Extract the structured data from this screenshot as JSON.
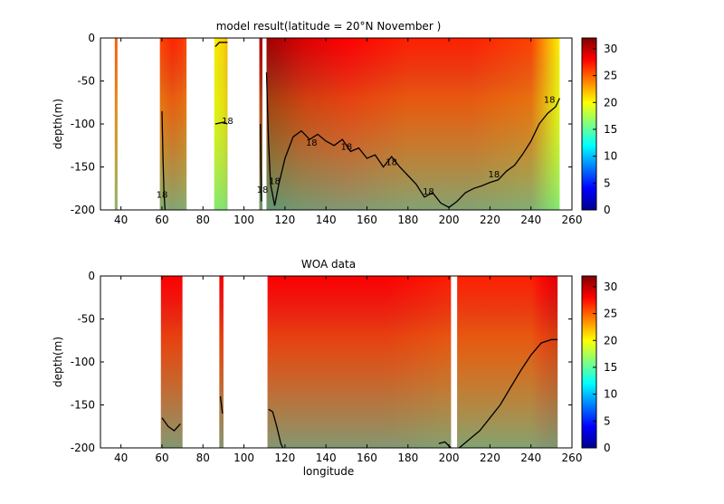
{
  "colormap": [
    "#00008f",
    "#0000ff",
    "#0080ff",
    "#00ffff",
    "#80ff80",
    "#ffff00",
    "#ff8000",
    "#ff0000",
    "#800000"
  ],
  "chart_data": [
    {
      "type": "heatmap",
      "title": "model result(latitude = 20°N  November )",
      "xlabel": "",
      "ylabel": "depth(m)",
      "xlim": [
        30,
        260
      ],
      "ylim": [
        -200,
        0
      ],
      "xticks": [
        "40",
        "60",
        "80",
        "100",
        "120",
        "140",
        "160",
        "180",
        "200",
        "220",
        "240",
        "260"
      ],
      "yticks": [
        "0",
        "-50",
        "-100",
        "-150",
        "-200"
      ],
      "colorbar": {
        "range": [
          0,
          32
        ],
        "ticks": [
          "30",
          "25",
          "20",
          "15",
          "10",
          "5",
          "0"
        ]
      },
      "surface_temperature": [
        {
          "x": 37.5,
          "t": 25
        },
        {
          "x": 60,
          "t": 26
        },
        {
          "x": 66,
          "t": 27
        },
        {
          "x": 72,
          "t": 26
        },
        {
          "x": 86,
          "t": 20
        },
        {
          "x": 92,
          "t": 22
        },
        {
          "x": 108,
          "t": 31
        },
        {
          "x": 111,
          "t": 31
        },
        {
          "x": 130,
          "t": 29
        },
        {
          "x": 150,
          "t": 28
        },
        {
          "x": 180,
          "t": 27
        },
        {
          "x": 210,
          "t": 27
        },
        {
          "x": 240,
          "t": 26
        },
        {
          "x": 250,
          "t": 22
        },
        {
          "x": 254,
          "t": 20
        }
      ],
      "segments": [
        {
          "x0": 37,
          "x1": 38.3
        },
        {
          "x0": 59,
          "x1": 72
        },
        {
          "x0": 85.5,
          "x1": 92
        },
        {
          "x0": 107.5,
          "x1": 109
        },
        {
          "x0": 111,
          "x1": 254
        }
      ],
      "isotherm_18C": [
        {
          "x": 111,
          "depth": -40
        },
        {
          "x": 112,
          "depth": -120
        },
        {
          "x": 113,
          "depth": -170
        },
        {
          "x": 115,
          "depth": -195
        },
        {
          "x": 117,
          "depth": -170
        },
        {
          "x": 120,
          "depth": -140
        },
        {
          "x": 124,
          "depth": -115
        },
        {
          "x": 128,
          "depth": -108
        },
        {
          "x": 132,
          "depth": -118
        },
        {
          "x": 136,
          "depth": -112
        },
        {
          "x": 140,
          "depth": -120
        },
        {
          "x": 144,
          "depth": -125
        },
        {
          "x": 148,
          "depth": -118
        },
        {
          "x": 152,
          "depth": -132
        },
        {
          "x": 156,
          "depth": -128
        },
        {
          "x": 160,
          "depth": -140
        },
        {
          "x": 164,
          "depth": -136
        },
        {
          "x": 168,
          "depth": -150
        },
        {
          "x": 172,
          "depth": -138
        },
        {
          "x": 176,
          "depth": -150
        },
        {
          "x": 180,
          "depth": -160
        },
        {
          "x": 184,
          "depth": -170
        },
        {
          "x": 188,
          "depth": -185
        },
        {
          "x": 192,
          "depth": -180
        },
        {
          "x": 196,
          "depth": -192
        },
        {
          "x": 200,
          "depth": -197
        },
        {
          "x": 204,
          "depth": -190
        },
        {
          "x": 208,
          "depth": -180
        },
        {
          "x": 212,
          "depth": -175
        },
        {
          "x": 216,
          "depth": -172
        },
        {
          "x": 220,
          "depth": -168
        },
        {
          "x": 224,
          "depth": -165
        },
        {
          "x": 228,
          "depth": -155
        },
        {
          "x": 232,
          "depth": -148
        },
        {
          "x": 236,
          "depth": -135
        },
        {
          "x": 240,
          "depth": -120
        },
        {
          "x": 244,
          "depth": -100
        },
        {
          "x": 248,
          "depth": -88
        },
        {
          "x": 252,
          "depth": -80
        },
        {
          "x": 254,
          "depth": -70
        }
      ],
      "isotherm_fragments": [
        [
          {
            "x": 60,
            "depth": -85
          },
          {
            "x": 60.5,
            "depth": -140
          },
          {
            "x": 61,
            "depth": -180
          },
          {
            "x": 61.5,
            "depth": -200
          }
        ],
        [
          {
            "x": 86,
            "depth": -100
          },
          {
            "x": 90,
            "depth": -98
          },
          {
            "x": 92,
            "depth": -100
          }
        ],
        [
          {
            "x": 86,
            "depth": -10
          },
          {
            "x": 88,
            "depth": -5
          },
          {
            "x": 92,
            "depth": -5
          }
        ],
        [
          {
            "x": 108,
            "depth": -100
          },
          {
            "x": 108.5,
            "depth": -190
          }
        ]
      ],
      "contour_labels": [
        {
          "x": 92,
          "depth": -100,
          "text": "18"
        },
        {
          "x": 60,
          "depth": -186,
          "text": "18"
        },
        {
          "x": 109,
          "depth": -180,
          "text": "18"
        },
        {
          "x": 115,
          "depth": -170,
          "text": "18"
        },
        {
          "x": 133,
          "depth": -125,
          "text": "18"
        },
        {
          "x": 150,
          "depth": -130,
          "text": "18"
        },
        {
          "x": 172,
          "depth": -148,
          "text": "18"
        },
        {
          "x": 190,
          "depth": -182,
          "text": "18"
        },
        {
          "x": 222,
          "depth": -162,
          "text": "18"
        },
        {
          "x": 249,
          "depth": -75,
          "text": "18"
        }
      ]
    },
    {
      "type": "heatmap",
      "title": "WOA data",
      "xlabel": "longitude",
      "ylabel": "depth(m)",
      "xlim": [
        30,
        260
      ],
      "ylim": [
        -200,
        0
      ],
      "xticks": [
        "40",
        "60",
        "80",
        "100",
        "120",
        "140",
        "160",
        "180",
        "200",
        "220",
        "240",
        "260"
      ],
      "yticks": [
        "0",
        "-50",
        "-100",
        "-150",
        "-200"
      ],
      "colorbar": {
        "range": [
          0,
          32
        ],
        "ticks": [
          "30",
          "25",
          "20",
          "15",
          "10",
          "5",
          "0"
        ]
      },
      "surface_temperature": [
        {
          "x": 60,
          "t": 28
        },
        {
          "x": 70,
          "t": 28
        },
        {
          "x": 88,
          "t": 29
        },
        {
          "x": 90,
          "t": 28
        },
        {
          "x": 112,
          "t": 28
        },
        {
          "x": 140,
          "t": 28
        },
        {
          "x": 170,
          "t": 28
        },
        {
          "x": 205,
          "t": 27
        },
        {
          "x": 240,
          "t": 27
        },
        {
          "x": 253,
          "t": 29
        }
      ],
      "segments": [
        {
          "x0": 59.5,
          "x1": 70
        },
        {
          "x0": 88,
          "x1": 90
        },
        {
          "x0": 111.5,
          "x1": 201
        },
        {
          "x0": 204,
          "x1": 253
        }
      ],
      "isotherm_20C": [
        {
          "x": 205,
          "depth": -200
        },
        {
          "x": 210,
          "depth": -190
        },
        {
          "x": 215,
          "depth": -180
        },
        {
          "x": 220,
          "depth": -165
        },
        {
          "x": 225,
          "depth": -150
        },
        {
          "x": 230,
          "depth": -130
        },
        {
          "x": 235,
          "depth": -110
        },
        {
          "x": 240,
          "depth": -92
        },
        {
          "x": 245,
          "depth": -78
        },
        {
          "x": 250,
          "depth": -74
        },
        {
          "x": 253,
          "depth": -74
        }
      ],
      "isotherm_fragments": [
        [
          {
            "x": 60,
            "depth": -165
          },
          {
            "x": 63,
            "depth": -175
          },
          {
            "x": 66,
            "depth": -180
          },
          {
            "x": 69,
            "depth": -172
          }
        ],
        [
          {
            "x": 112,
            "depth": -155
          },
          {
            "x": 114,
            "depth": -158
          },
          {
            "x": 116,
            "depth": -175
          },
          {
            "x": 118,
            "depth": -195
          },
          {
            "x": 119,
            "depth": -200
          }
        ],
        [
          {
            "x": 88.5,
            "depth": -140
          },
          {
            "x": 89.5,
            "depth": -160
          }
        ],
        [
          {
            "x": 195,
            "depth": -195
          },
          {
            "x": 198,
            "depth": -193
          },
          {
            "x": 201,
            "depth": -200
          }
        ]
      ]
    }
  ]
}
